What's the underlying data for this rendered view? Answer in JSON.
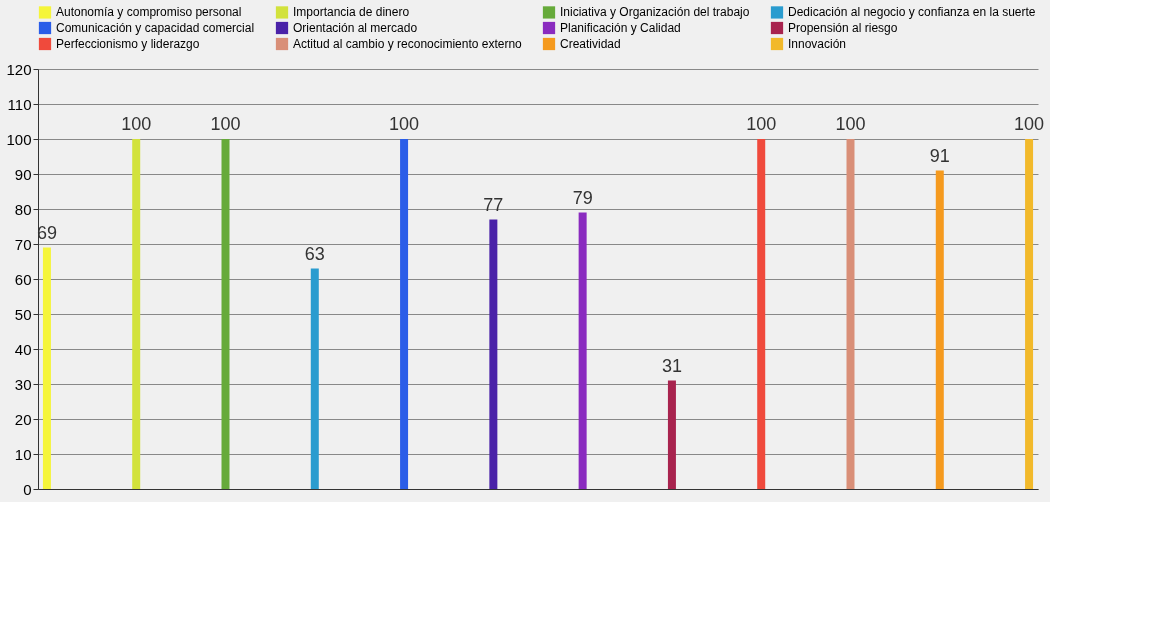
{
  "chart_data": {
    "type": "bar",
    "categories": [
      null,
      null,
      null,
      null,
      null,
      null,
      null,
      null,
      null,
      null,
      null,
      null
    ],
    "series": [
      {
        "name": "Autonomía y compromiso personal",
        "color": "#f5f53a",
        "values": [
          69,
          null,
          null,
          null,
          null,
          null,
          null,
          null,
          null,
          null,
          null,
          null
        ]
      },
      {
        "name": "Importancia de dinero",
        "color": "#d2e23c",
        "values": [
          null,
          100,
          null,
          null,
          null,
          null,
          null,
          null,
          null,
          null,
          null,
          null
        ]
      },
      {
        "name": "Iniciativa y Organización del trabajo",
        "color": "#66aa3a",
        "values": [
          null,
          null,
          100,
          null,
          null,
          null,
          null,
          null,
          null,
          null,
          null,
          null
        ]
      },
      {
        "name": "Dedicación al negocio y confianza en la suerte",
        "color": "#2a9ccf",
        "values": [
          null,
          null,
          null,
          63,
          null,
          null,
          null,
          null,
          null,
          null,
          null,
          null
        ]
      },
      {
        "name": "Comunicación y capacidad comercial",
        "color": "#2a5de8",
        "values": [
          null,
          null,
          null,
          null,
          100,
          null,
          null,
          null,
          null,
          null,
          null,
          null
        ]
      },
      {
        "name": "Orientación al mercado",
        "color": "#4a22a8",
        "values": [
          null,
          null,
          null,
          null,
          null,
          77,
          null,
          null,
          null,
          null,
          null,
          null
        ]
      },
      {
        "name": "Planificación y Calidad",
        "color": "#8a2bbf",
        "values": [
          null,
          null,
          null,
          null,
          null,
          null,
          79,
          null,
          null,
          null,
          null,
          null
        ]
      },
      {
        "name": "Propensión al riesgo",
        "color": "#a8234e",
        "values": [
          null,
          null,
          null,
          null,
          null,
          null,
          null,
          31,
          null,
          null,
          null,
          null
        ]
      },
      {
        "name": "Perfeccionismo y liderazgo",
        "color": "#f04a3c",
        "values": [
          null,
          null,
          null,
          null,
          null,
          null,
          null,
          null,
          100,
          null,
          null,
          null
        ]
      },
      {
        "name": "Actitud al cambio y reconocimiento externo",
        "color": "#d98f78",
        "values": [
          null,
          null,
          null,
          null,
          null,
          null,
          null,
          null,
          null,
          100,
          null,
          null
        ]
      },
      {
        "name": "Creatividad",
        "color": "#f59a1e",
        "values": [
          null,
          null,
          null,
          null,
          null,
          null,
          null,
          null,
          null,
          null,
          91,
          null
        ]
      },
      {
        "name": "Innovación",
        "color": "#f2b92a",
        "values": [
          null,
          null,
          null,
          null,
          null,
          null,
          null,
          null,
          null,
          null,
          null,
          100
        ]
      }
    ],
    "ylim": [
      0,
      120
    ],
    "yticks": [
      0,
      10,
      20,
      30,
      40,
      50,
      60,
      70,
      80,
      90,
      100,
      110,
      120
    ],
    "grid": "y",
    "legend": "top",
    "data_labels": true,
    "tick_labels": "y"
  }
}
